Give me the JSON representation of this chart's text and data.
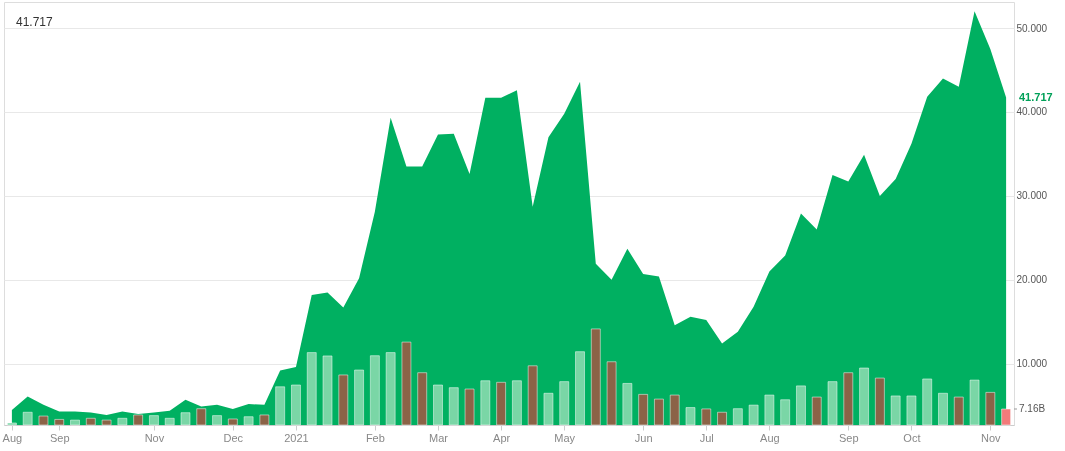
{
  "chart_data": {
    "type": "area",
    "categories": [
      "Aug",
      null,
      null,
      "Sep",
      null,
      null,
      null,
      null,
      null,
      "Nov",
      null,
      null,
      null,
      null,
      "Dec",
      null,
      null,
      null,
      "2021",
      null,
      null,
      null,
      null,
      "Feb",
      null,
      null,
      null,
      "Mar",
      null,
      null,
      null,
      "Apr",
      null,
      null,
      null,
      "May",
      null,
      null,
      null,
      null,
      "Jun",
      null,
      null,
      null,
      "Jul",
      null,
      null,
      null,
      "Aug",
      null,
      null,
      null,
      null,
      "Sep",
      null,
      null,
      null,
      "Oct",
      null,
      null,
      null,
      null,
      "Nov",
      null
    ],
    "series": [
      {
        "color": "#00b061",
        "values": [
          4.5,
          6.1,
          5.1,
          4.3,
          4.3,
          4.2,
          3.9,
          4.3,
          4.0,
          4.2,
          4.4,
          5.7,
          4.9,
          5.1,
          4.6,
          5.2,
          5.1,
          9.2,
          9.6,
          18.2,
          18.5,
          16.7,
          20.2,
          28.1,
          39.3,
          33.5,
          33.5,
          37.3,
          37.4,
          32.6,
          41.7,
          41.7,
          42.6,
          28.7,
          37.0,
          39.8,
          43.6,
          21.9,
          20.0,
          23.7,
          20.7,
          20.4,
          14.6,
          15.6,
          15.2,
          12.4,
          13.8,
          16.8,
          21.0,
          22.9,
          27.9,
          26.0,
          32.5,
          31.7,
          34.9,
          30.0,
          32.0,
          36.2,
          41.8,
          44.0,
          43.0,
          52.0,
          47.5,
          41.717
        ]
      },
      {
        "type": "bar",
        "axis": "y2",
        "values": [
          0.9,
          5.7,
          4.0,
          2.5,
          2.2,
          3.0,
          2.2,
          3.0,
          4.5,
          4.2,
          3.0,
          5.5,
          7.3,
          4.2,
          2.7,
          3.7,
          4.5,
          17.1,
          17.9,
          32.4,
          30.9,
          22.4,
          24.6,
          31.0,
          32.4,
          37.1,
          23.4,
          17.9,
          16.7,
          16.1,
          19.8,
          19.1,
          19.8,
          26.5,
          14.2,
          19.4,
          32.8,
          43.0,
          28.3,
          18.6,
          13.7,
          11.6,
          13.4,
          7.8,
          7.2,
          5.7,
          7.3,
          8.9,
          13.4,
          11.3,
          17.5,
          12.5,
          19.4,
          23.4,
          25.5,
          21.0,
          13.0,
          13.0,
          20.6,
          14.2,
          12.5,
          20.1,
          14.6,
          7.16
        ],
        "colors": [
          "#7ad6a6",
          "#7ad6a6",
          "#8b6347",
          "#8b6347",
          "#7ad6a6",
          "#8b6347",
          "#8b6347",
          "#7ad6a6",
          "#8b6347",
          "#7ad6a6",
          "#7ad6a6",
          "#7ad6a6",
          "#8b6347",
          "#7ad6a6",
          "#8b6347",
          "#7ad6a6",
          "#8b6347",
          "#7ad6a6",
          "#7ad6a6",
          "#7ad6a6",
          "#7ad6a6",
          "#8b6347",
          "#7ad6a6",
          "#7ad6a6",
          "#7ad6a6",
          "#8b6347",
          "#8b6347",
          "#7ad6a6",
          "#7ad6a6",
          "#8b6347",
          "#7ad6a6",
          "#8b6347",
          "#7ad6a6",
          "#8b6347",
          "#7ad6a6",
          "#7ad6a6",
          "#7ad6a6",
          "#8b6347",
          "#8b6347",
          "#7ad6a6",
          "#8b6347",
          "#8b6347",
          "#8b6347",
          "#7ad6a6",
          "#8b6347",
          "#8b6347",
          "#7ad6a6",
          "#7ad6a6",
          "#7ad6a6",
          "#7ad6a6",
          "#7ad6a6",
          "#8b6347",
          "#7ad6a6",
          "#8b6347",
          "#7ad6a6",
          "#8b6347",
          "#7ad6a6",
          "#7ad6a6",
          "#7ad6a6",
          "#7ad6a6",
          "#8b6347",
          "#7ad6a6",
          "#8b6347",
          "#f27b7b"
        ]
      }
    ],
    "ylim": [
      2.7,
      53.1
    ],
    "yticks": [
      {
        "value": 10,
        "label": "10.000"
      },
      {
        "value": 20,
        "label": "20.000"
      },
      {
        "value": 30,
        "label": "30.000"
      },
      {
        "value": 40,
        "label": "40.000"
      },
      {
        "value": 50,
        "label": "50.000"
      }
    ],
    "y2lim": [
      0,
      189.3
    ],
    "y2ticks": [
      {
        "value": 7.16,
        "label": "7.16B"
      }
    ],
    "grid": "y",
    "annotations": [
      "41.717",
      "41.717"
    ]
  }
}
